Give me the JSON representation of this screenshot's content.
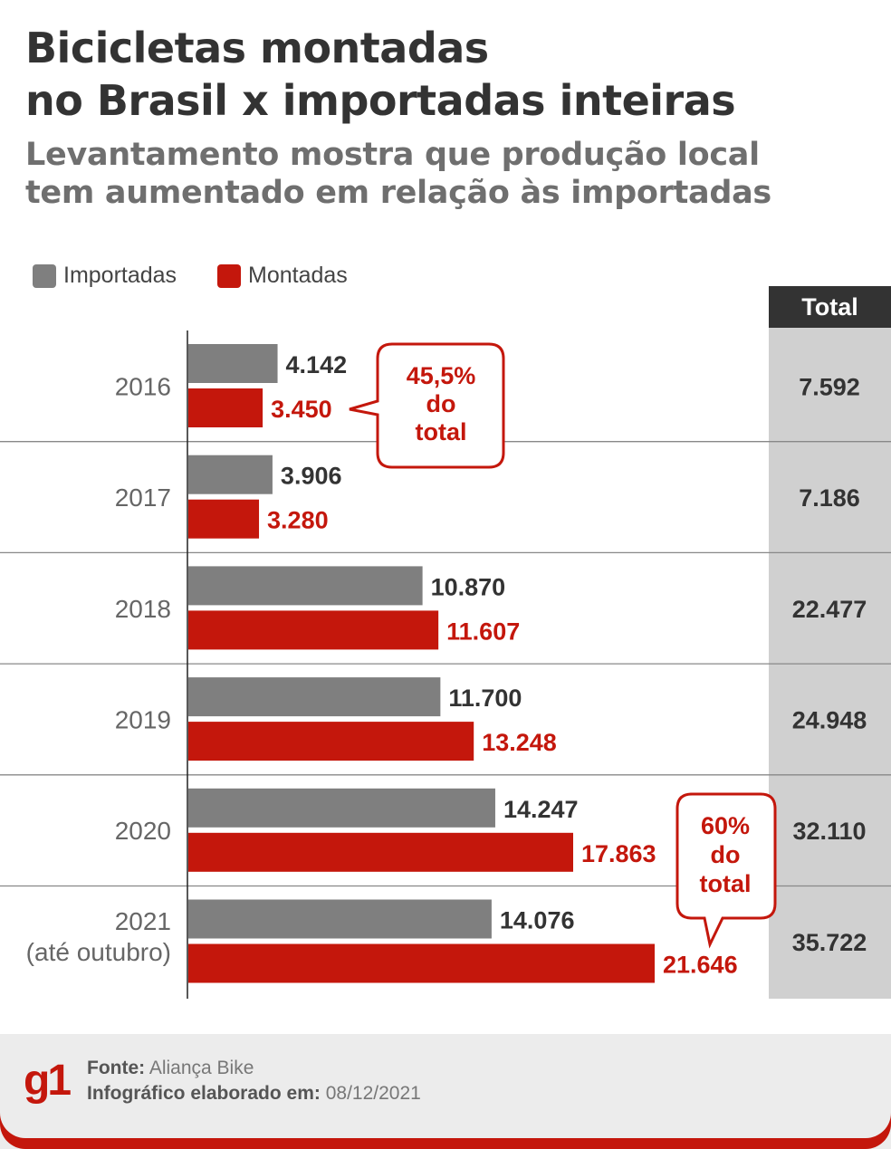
{
  "header": {
    "title_line1": "Bicicletas montadas",
    "title_line2": "no Brasil x importadas inteiras",
    "subtitle_line1": "Levantamento mostra que produção local",
    "subtitle_line2": "tem aumentado em relação às importadas"
  },
  "legend": {
    "importadas": "Importadas",
    "montadas": "Montadas"
  },
  "colors": {
    "importadas": "#7f7f7f",
    "montadas": "#c4170c",
    "total_bg": "#d0d0d0",
    "total_header": "#333333"
  },
  "chart_data": {
    "type": "bar",
    "orientation": "horizontal",
    "categories": [
      "2016",
      "2017",
      "2018",
      "2019",
      "2020",
      "2021\n(até outubro)"
    ],
    "series": [
      {
        "name": "Importadas",
        "values": [
          4142,
          3906,
          10870,
          11700,
          14247,
          14076
        ],
        "labels": [
          "4.142",
          "3.906",
          "10.870",
          "11.700",
          "14.247",
          "14.076"
        ]
      },
      {
        "name": "Montadas",
        "values": [
          3450,
          3280,
          11607,
          13248,
          17863,
          21646
        ],
        "labels": [
          "3.450",
          "3.280",
          "11.607",
          "13.248",
          "17.863",
          "21.646"
        ]
      }
    ],
    "totals_header": "Total",
    "totals": [
      "7.592",
      "7.186",
      "22.477",
      "24.948",
      "32.110",
      "35.722"
    ],
    "callouts": [
      {
        "category_index": 0,
        "text": [
          "45,5%",
          "do",
          "total"
        ]
      },
      {
        "category_index": 5,
        "text": [
          "60%",
          "do",
          "total"
        ]
      }
    ],
    "xlim": [
      0,
      25000
    ],
    "grid": false,
    "legend_position": "top-left"
  },
  "footer": {
    "logo": "g1",
    "source_label": "Fonte:",
    "source_value": "Aliança Bike",
    "made_label": "Infográfico elaborado em:",
    "made_value": "08/12/2021"
  }
}
